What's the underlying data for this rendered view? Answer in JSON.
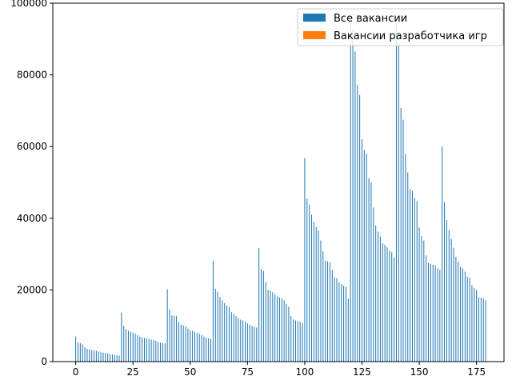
{
  "chart_data": {
    "type": "bar",
    "xlim": [
      -10,
      187
    ],
    "ylim": [
      0,
      100000
    ],
    "xticks": [
      0,
      25,
      50,
      75,
      100,
      125,
      150,
      175
    ],
    "yticks": [
      0,
      20000,
      40000,
      60000,
      80000,
      100000
    ],
    "legend_placement": "top-right",
    "colors": {
      "all": "#1f77b4",
      "games": "#ff7f0e"
    },
    "series": [
      {
        "name": "Все вакансии",
        "x": [
          0,
          1,
          2,
          3,
          4,
          5,
          6,
          7,
          8,
          9,
          10,
          11,
          12,
          13,
          14,
          15,
          16,
          17,
          18,
          19,
          20,
          21,
          22,
          23,
          24,
          25,
          26,
          27,
          28,
          29,
          30,
          31,
          32,
          33,
          34,
          35,
          36,
          37,
          38,
          39,
          40,
          41,
          42,
          43,
          44,
          45,
          46,
          47,
          48,
          49,
          50,
          51,
          52,
          53,
          54,
          55,
          56,
          57,
          58,
          59,
          60,
          61,
          62,
          63,
          64,
          65,
          66,
          67,
          68,
          69,
          70,
          71,
          72,
          73,
          74,
          75,
          76,
          77,
          78,
          79,
          80,
          81,
          82,
          83,
          84,
          85,
          86,
          87,
          88,
          89,
          90,
          91,
          92,
          93,
          94,
          95,
          96,
          97,
          98,
          99,
          100,
          101,
          102,
          103,
          104,
          105,
          106,
          107,
          108,
          109,
          110,
          111,
          112,
          113,
          114,
          115,
          116,
          117,
          118,
          119,
          120,
          121,
          122,
          123,
          124,
          125,
          126,
          127,
          128,
          129,
          130,
          131,
          132,
          133,
          134,
          135,
          136,
          137,
          138,
          139,
          140,
          141,
          142,
          143,
          144,
          145,
          146,
          147,
          148,
          149,
          150,
          151,
          152,
          153,
          154,
          155,
          156,
          157,
          158,
          159,
          160,
          161,
          162,
          163,
          164,
          165,
          166,
          167,
          168,
          169,
          170,
          171,
          172,
          173,
          174,
          175,
          176,
          177,
          178,
          179
        ],
        "values": [
          7000,
          5300,
          5200,
          4800,
          4000,
          3600,
          3400,
          3200,
          3100,
          3000,
          2800,
          2600,
          2500,
          2400,
          2300,
          2200,
          2000,
          1900,
          1800,
          1700,
          13700,
          10000,
          9000,
          8600,
          8300,
          8100,
          7800,
          7400,
          7000,
          6800,
          6600,
          6500,
          6300,
          6100,
          6000,
          5800,
          5500,
          5300,
          5200,
          5100,
          20200,
          14600,
          12900,
          12800,
          12700,
          11000,
          10300,
          10100,
          9800,
          9200,
          8700,
          8600,
          8300,
          8000,
          7800,
          7400,
          7000,
          6700,
          6500,
          6300,
          28100,
          20300,
          19500,
          18000,
          17100,
          16300,
          15600,
          15200,
          13800,
          13300,
          12700,
          12200,
          11700,
          11500,
          11200,
          10700,
          10300,
          9900,
          9800,
          9500,
          31700,
          25800,
          25300,
          22200,
          20000,
          19800,
          19400,
          18800,
          18200,
          17900,
          17600,
          17100,
          16100,
          15300,
          12700,
          11800,
          11500,
          11300,
          11100,
          10800,
          56800,
          45500,
          43800,
          41000,
          39000,
          37600,
          36600,
          33800,
          30800,
          28200,
          28000,
          27700,
          25500,
          23500,
          23300,
          22100,
          21600,
          21200,
          20900,
          17500,
          95500,
          92500,
          86500,
          77200,
          74400,
          62000,
          59000,
          58000,
          51200,
          50000,
          43000,
          38000,
          36300,
          34900,
          33000,
          32600,
          31900,
          30900,
          30600,
          29000,
          94500,
          89000,
          70800,
          67500,
          58000,
          52800,
          48100,
          47600,
          45600,
          44800,
          37400,
          35000,
          33800,
          29600,
          27500,
          27300,
          27000,
          26800,
          26000,
          25600,
          60000,
          44500,
          39500,
          36700,
          34200,
          31800,
          29200,
          28000,
          26500,
          26000,
          25100,
          23700,
          23400,
          21300,
          20500,
          20000,
          17900,
          17800,
          17600,
          17100
        ]
      },
      {
        "name": "Вакансии разработчика игр",
        "x": [
          0,
          20,
          40,
          60,
          80,
          100,
          120,
          140,
          160
        ],
        "values": [
          30,
          60,
          80,
          90,
          100,
          220,
          260,
          300,
          240
        ]
      }
    ]
  }
}
